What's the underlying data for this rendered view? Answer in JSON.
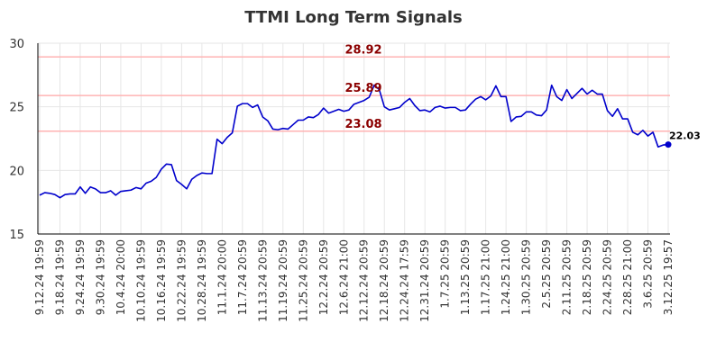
{
  "chart_data": {
    "type": "line",
    "title": "TTMI Long Term Signals",
    "ylim": [
      15,
      30
    ],
    "y_ticks": [
      15,
      20,
      25,
      30
    ],
    "grid": true,
    "x_ticks": [
      "9.12.24 19:59",
      "9.18.24 19:59",
      "9.24.24 19:59",
      "9.30.24 19:59",
      "10.4.24 20:00",
      "10.10.24 19:59",
      "10.16.24 19:59",
      "10.22.24 19:59",
      "10.28.24 19:59",
      "11.1.24 20:00",
      "11.7.24 20:59",
      "11.13.24 20:59",
      "11.19.24 20:59",
      "11.25.24 20:59",
      "12.2.24 20:59",
      "12.6.24 21:00",
      "12.12.24 20:59",
      "12.18.24 20:59",
      "12.24.24 17:59",
      "12.31.24 20:59",
      "1.7.25 20:59",
      "1.13.25 20:59",
      "1.17.25 21:00",
      "1.24.25 21:00",
      "1.30.25 20:59",
      "2.5.25 20:59",
      "2.11.25 20:59",
      "2.18.25 20:59",
      "2.24.25 20:59",
      "2.28.25 21:00",
      "3.6.25 20:59",
      "3.12.25 19:57"
    ],
    "reference_lines": [
      {
        "value": 28.92,
        "label": "28.92",
        "color": "#ffb3b3"
      },
      {
        "value": 25.89,
        "label": "25.89",
        "color": "#ffb3b3"
      },
      {
        "value": 23.08,
        "label": "23.08",
        "color": "#ffb3b3"
      }
    ],
    "reference_label_color": "#8b0000",
    "last_value_label": "22.03",
    "series": [
      {
        "color": "#0000cc",
        "values": [
          18.05,
          18.25,
          18.2,
          18.1,
          17.85,
          18.1,
          18.15,
          18.15,
          18.7,
          18.2,
          18.7,
          18.55,
          18.25,
          18.25,
          18.4,
          18.05,
          18.35,
          18.4,
          18.45,
          18.65,
          18.55,
          19.0,
          19.15,
          19.45,
          20.1,
          20.5,
          20.45,
          19.2,
          18.9,
          18.55,
          19.3,
          19.6,
          19.8,
          19.75,
          19.75,
          22.45,
          22.1,
          22.6,
          22.95,
          25.05,
          25.25,
          25.25,
          24.95,
          25.15,
          24.2,
          23.9,
          23.25,
          23.2,
          23.3,
          23.25,
          23.6,
          23.95,
          23.95,
          24.2,
          24.15,
          24.4,
          24.9,
          24.5,
          24.65,
          24.8,
          24.65,
          24.75,
          25.2,
          25.35,
          25.5,
          25.75,
          26.7,
          26.35,
          25.0,
          24.75,
          24.85,
          24.95,
          25.35,
          25.65,
          25.1,
          24.7,
          24.75,
          24.6,
          24.95,
          25.05,
          24.9,
          24.95,
          24.95,
          24.7,
          24.75,
          25.2,
          25.6,
          25.8,
          25.55,
          25.85,
          26.65,
          25.8,
          25.8,
          23.85,
          24.2,
          24.25,
          24.6,
          24.6,
          24.35,
          24.3,
          24.75,
          26.7,
          25.8,
          25.5,
          26.35,
          25.65,
          26.05,
          26.45,
          26.0,
          26.3,
          26.0,
          26.0,
          24.7,
          24.25,
          24.85,
          24.05,
          24.05,
          23.0,
          22.8,
          23.15,
          22.7,
          23.0,
          21.85,
          22.0,
          22.03
        ]
      }
    ]
  }
}
